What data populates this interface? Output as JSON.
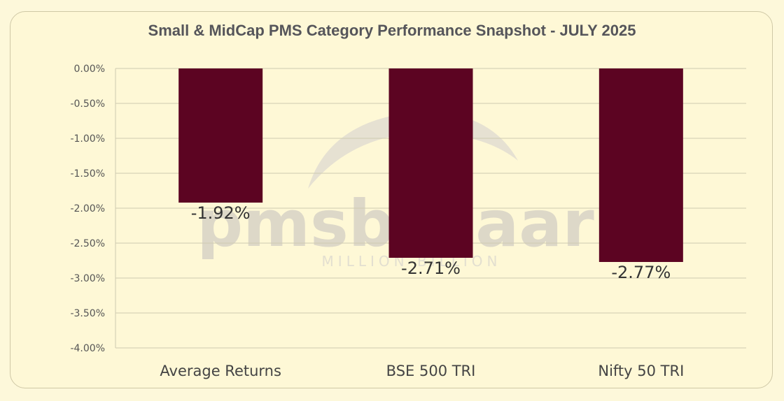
{
  "chart_data": {
    "type": "bar",
    "title": "Small & MidCap PMS Category Performance Snapshot - JULY 2025",
    "categories": [
      "Average Returns",
      "BSE 500 TRI",
      "Nifty 50 TRI"
    ],
    "values": [
      -1.92,
      -2.71,
      -2.77
    ],
    "data_labels": [
      "-1.92%",
      "-2.71%",
      "-2.77%"
    ],
    "ylim": [
      -4.0,
      0.0
    ],
    "yticks": [
      "0.00%",
      "-0.50%",
      "-1.00%",
      "-1.50%",
      "-2.00%",
      "-2.50%",
      "-3.00%",
      "-3.50%",
      "-4.00%"
    ],
    "grid": true,
    "legend": "none",
    "bar_color": "#5c0422",
    "xlabel": "",
    "ylabel": ""
  },
  "watermark": {
    "brand": "pmsbazaar",
    "tagline": "MILLION BILLION"
  }
}
